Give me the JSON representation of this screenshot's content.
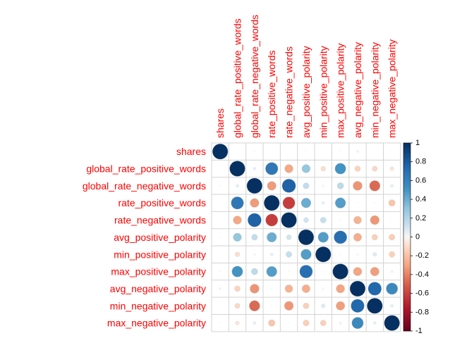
{
  "chart_data": {
    "type": "heatmap",
    "variables": [
      "shares",
      "global_rate_positive_words",
      "global_rate_negative_words",
      "rate_positive_words",
      "rate_negative_words",
      "avg_positive_polarity",
      "min_positive_polarity",
      "max_positive_polarity",
      "avg_negative_polarity",
      "min_negative_polarity",
      "max_negative_polarity"
    ],
    "matrix": [
      [
        1.0,
        0.0,
        0.01,
        0.0,
        0.0,
        0.01,
        0.0,
        0.01,
        -0.03,
        0.0,
        -0.01
      ],
      [
        0.0,
        1.0,
        0.05,
        0.65,
        -0.29,
        0.29,
        -0.09,
        0.5,
        -0.13,
        -0.11,
        -0.06
      ],
      [
        0.01,
        0.05,
        1.0,
        -0.33,
        0.77,
        0.15,
        0.02,
        0.17,
        -0.35,
        -0.47,
        0.05
      ],
      [
        0.0,
        0.65,
        -0.33,
        1.0,
        -0.62,
        0.4,
        0.05,
        0.46,
        -0.01,
        0.01,
        -0.18
      ],
      [
        0.0,
        -0.29,
        0.77,
        -0.62,
        1.0,
        0.1,
        0.14,
        0.01,
        -0.25,
        -0.34,
        0.01
      ],
      [
        0.01,
        0.29,
        0.15,
        0.4,
        0.1,
        1.0,
        0.46,
        0.7,
        -0.27,
        -0.14,
        -0.15
      ],
      [
        0.0,
        -0.09,
        0.02,
        0.05,
        0.14,
        0.46,
        1.0,
        0.01,
        -0.02,
        0.06,
        -0.14
      ],
      [
        0.01,
        0.5,
        0.17,
        0.46,
        0.01,
        0.7,
        0.01,
        1.0,
        -0.3,
        -0.32,
        0.03
      ],
      [
        -0.03,
        -0.13,
        -0.35,
        -0.01,
        -0.25,
        -0.27,
        -0.02,
        -0.3,
        1.0,
        0.74,
        0.56
      ],
      [
        0.0,
        -0.11,
        -0.47,
        0.01,
        -0.34,
        -0.14,
        0.06,
        -0.32,
        0.74,
        1.0,
        0.05
      ],
      [
        -0.01,
        -0.06,
        0.05,
        -0.18,
        0.01,
        -0.15,
        -0.14,
        0.03,
        0.56,
        0.05,
        1.0
      ]
    ],
    "colorbar": {
      "ticks": [
        "1",
        "0.8",
        "0.6",
        "0.4",
        "0.2",
        "0",
        "-0.2",
        "-0.4",
        "-0.6",
        "-0.8",
        "-1"
      ],
      "range": [
        -1,
        1
      ],
      "high_color": "#053061",
      "mid_color": "#F7F7F7",
      "low_color": "#67001F"
    },
    "label_color": "#FF0000",
    "grid_color": "#D3D3D3",
    "method": "circle"
  }
}
